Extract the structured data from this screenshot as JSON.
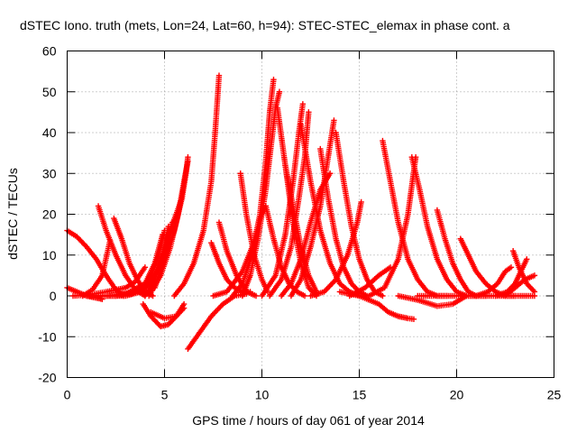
{
  "chart_data": {
    "type": "scatter",
    "title": "dSTEC Iono. truth (mets, Lon=24, Lat=60, h=94): STEC-STEC_elemax in phase cont. a",
    "xlabel": "GPS time / hours of day 061 of year 2014",
    "ylabel": "dSTEC  / TECUs",
    "xlim": [
      0,
      25
    ],
    "ylim": [
      -20,
      60
    ],
    "xticks": [
      0,
      5,
      10,
      15,
      20,
      25
    ],
    "yticks": [
      -20,
      -10,
      0,
      10,
      20,
      30,
      40,
      50,
      60
    ],
    "grid": true,
    "marker": "plus",
    "marker_color": "#ff0000",
    "series": [
      {
        "x": [
          0.0,
          0.5,
          1.0,
          1.5,
          2.0,
          2.5,
          2.9
        ],
        "y": [
          16,
          14.5,
          12,
          9,
          5,
          1.5,
          0
        ]
      },
      {
        "x": [
          0.0,
          0.5,
          1.0,
          1.5,
          1.8
        ],
        "y": [
          2,
          1,
          0,
          -0.5,
          -0.8
        ]
      },
      {
        "x": [
          0.8,
          1.3,
          1.8,
          2.2
        ],
        "y": [
          0,
          1.5,
          5,
          13.5
        ]
      },
      {
        "x": [
          1.6,
          2.0,
          2.5,
          3.0,
          3.5,
          4.0
        ],
        "y": [
          22,
          16,
          10,
          5,
          1.5,
          0
        ]
      },
      {
        "x": [
          2.4,
          2.8,
          3.2,
          3.6,
          4.0,
          4.4
        ],
        "y": [
          19,
          14,
          8,
          4,
          1,
          0
        ]
      },
      {
        "x": [
          0.3,
          1.0,
          2.0,
          3.0,
          3.5,
          4.0
        ],
        "y": [
          0,
          0.2,
          1,
          2,
          3.5,
          7
        ]
      },
      {
        "x": [
          1.0,
          2.0,
          3.0,
          4.0,
          4.5,
          4.9
        ],
        "y": [
          0,
          0,
          0.5,
          3,
          8,
          15
        ]
      },
      {
        "x": [
          1.5,
          2.5,
          3.5,
          4.2,
          4.7,
          5.0
        ],
        "y": [
          0,
          0,
          1,
          4,
          10,
          16
        ]
      },
      {
        "x": [
          2.0,
          3.0,
          3.8,
          4.4,
          4.9,
          5.2
        ],
        "y": [
          0,
          0,
          1,
          4,
          10,
          17
        ]
      },
      {
        "x": [
          2.5,
          3.3,
          4.0,
          4.6,
          5.1,
          5.4
        ],
        "y": [
          0,
          0.5,
          2,
          6,
          11,
          18
        ]
      },
      {
        "x": [
          4.0,
          4.4,
          4.8,
          5.2,
          5.6,
          5.9
        ],
        "y": [
          0,
          3,
          8,
          15,
          20,
          24
        ]
      },
      {
        "x": [
          4.2,
          4.8,
          5.3,
          5.7,
          6.0,
          6.2
        ],
        "y": [
          0,
          5,
          12,
          20,
          28,
          33
        ]
      },
      {
        "x": [
          4.5,
          5.0,
          5.5,
          5.9,
          6.1,
          6.2
        ],
        "y": [
          2,
          9,
          16,
          24,
          30,
          34
        ]
      },
      {
        "x": [
          3.9,
          4.3,
          4.8,
          5.2,
          5.6,
          6.0
        ],
        "y": [
          -2,
          -5,
          -7.5,
          -7,
          -5,
          -2
        ]
      },
      {
        "x": [
          4.3,
          5.0,
          5.6,
          6.0
        ],
        "y": [
          -4,
          -5.5,
          -5,
          -3
        ]
      },
      {
        "x": [
          5.5,
          6.0,
          6.5,
          7.0,
          7.4,
          7.6,
          7.8
        ],
        "y": [
          0,
          3,
          8,
          16,
          28,
          40,
          54
        ]
      },
      {
        "x": [
          6.2,
          6.8,
          7.4,
          8.0,
          8.6,
          9.2
        ],
        "y": [
          -13,
          -9,
          -5,
          -2,
          0,
          0.5
        ]
      },
      {
        "x": [
          7.4,
          7.8,
          8.2,
          8.6,
          9.0,
          9.4
        ],
        "y": [
          13,
          8,
          4,
          2,
          1,
          1
        ]
      },
      {
        "x": [
          7.8,
          8.2,
          8.7,
          9.2,
          9.7
        ],
        "y": [
          18,
          11,
          5,
          1,
          0
        ]
      },
      {
        "x": [
          8.9,
          9.2,
          9.6,
          10.0,
          10.3
        ],
        "y": [
          30,
          20,
          10,
          4,
          1
        ]
      },
      {
        "x": [
          7.5,
          8.2,
          9.0,
          9.5,
          9.9,
          10.2
        ],
        "y": [
          0,
          1,
          6,
          12,
          19,
          22
        ]
      },
      {
        "x": [
          8.5,
          9.0,
          9.5,
          9.9,
          10.2,
          10.4,
          10.6
        ],
        "y": [
          0,
          3,
          10,
          20,
          33,
          45,
          53
        ]
      },
      {
        "x": [
          9.0,
          9.4,
          9.8,
          10.2,
          10.5,
          10.7,
          10.9
        ],
        "y": [
          0,
          5,
          14,
          26,
          38,
          46,
          50
        ]
      },
      {
        "x": [
          10.2,
          10.6,
          11.0,
          11.4,
          11.8,
          12.2
        ],
        "y": [
          22,
          14,
          7,
          3,
          1,
          0
        ]
      },
      {
        "x": [
          10.8,
          11.2,
          11.6,
          12.0,
          12.4,
          12.8
        ],
        "y": [
          46,
          32,
          18,
          8,
          2,
          0
        ]
      },
      {
        "x": [
          11.2,
          11.6,
          12.0,
          12.4,
          12.8
        ],
        "y": [
          32,
          22,
          12,
          5,
          1
        ]
      },
      {
        "x": [
          10.0,
          10.7,
          11.2,
          11.6,
          11.9,
          12.1
        ],
        "y": [
          0,
          5,
          15,
          28,
          40,
          47
        ]
      },
      {
        "x": [
          10.4,
          11.0,
          11.5,
          11.9,
          12.2,
          12.4
        ],
        "y": [
          0,
          4,
          12,
          24,
          34,
          45
        ]
      },
      {
        "x": [
          11.0,
          11.5,
          12.0,
          12.5,
          13.0,
          13.5
        ],
        "y": [
          0,
          3,
          9,
          18,
          26,
          30
        ]
      },
      {
        "x": [
          11.5,
          12.0,
          12.5,
          13.0,
          13.4,
          13.7
        ],
        "y": [
          0,
          4,
          12,
          22,
          34,
          43
        ]
      },
      {
        "x": [
          12.0,
          12.5,
          13.0,
          13.5,
          14.0,
          14.5,
          15.0
        ],
        "y": [
          42,
          28,
          16,
          8,
          3,
          1,
          0
        ]
      },
      {
        "x": [
          13.0,
          13.4,
          13.8,
          14.2,
          14.6,
          15.0,
          15.4
        ],
        "y": [
          36,
          24,
          14,
          7,
          3,
          1,
          0
        ]
      },
      {
        "x": [
          13.8,
          14.2,
          14.6,
          15.0,
          15.4,
          15.8,
          16.2
        ],
        "y": [
          40,
          28,
          17,
          9,
          4,
          1,
          0
        ]
      },
      {
        "x": [
          12.5,
          13.2,
          13.8,
          14.4,
          14.9,
          15.1
        ],
        "y": [
          0,
          1,
          4,
          10,
          18,
          23
        ]
      },
      {
        "x": [
          14.0,
          15.0,
          16.0,
          16.5,
          17.0,
          17.5,
          17.8
        ],
        "y": [
          1,
          0,
          -2,
          -4,
          -5,
          -5.5,
          -5.7
        ]
      },
      {
        "x": [
          14.5,
          15.3,
          16.0,
          16.6
        ],
        "y": [
          0,
          2,
          5,
          7
        ]
      },
      {
        "x": [
          16.2,
          16.6,
          17.0,
          17.5,
          18.0,
          18.5,
          19.0,
          19.5
        ],
        "y": [
          38,
          28,
          18,
          9,
          4,
          1,
          0,
          0
        ]
      },
      {
        "x": [
          17.7,
          18.1,
          18.5,
          19.0,
          19.5,
          20.0,
          20.5
        ],
        "y": [
          34,
          26,
          17,
          9,
          4,
          1,
          0
        ]
      },
      {
        "x": [
          15.5,
          16.3,
          17.0,
          17.5,
          17.9
        ],
        "y": [
          0,
          2,
          9,
          20,
          34
        ]
      },
      {
        "x": [
          17.0,
          18.0,
          19.0,
          19.8,
          20.5,
          21.5
        ],
        "y": [
          0,
          -1,
          -2.5,
          -2,
          0,
          0
        ]
      },
      {
        "x": [
          19.0,
          19.4,
          19.8,
          20.2,
          20.6,
          21.0
        ],
        "y": [
          21,
          14,
          8,
          4,
          1,
          0
        ]
      },
      {
        "x": [
          20.2,
          20.6,
          21.0,
          21.5,
          22.0,
          22.5,
          23.0
        ],
        "y": [
          14,
          10,
          6,
          3,
          1,
          0,
          0
        ]
      },
      {
        "x": [
          22.9,
          23.2,
          23.6,
          24.0
        ],
        "y": [
          11,
          7,
          3,
          1
        ]
      },
      {
        "x": [
          21.0,
          21.6,
          22.1,
          22.5,
          22.8
        ],
        "y": [
          0,
          1,
          3,
          6,
          7
        ]
      },
      {
        "x": [
          22.0,
          22.6,
          23.0,
          23.4,
          23.6
        ],
        "y": [
          0,
          1,
          3,
          7,
          9
        ]
      },
      {
        "x": [
          22.5,
          23.0,
          23.5,
          24.0
        ],
        "y": [
          0,
          2,
          4,
          5
        ]
      },
      {
        "x": [
          18.0,
          19.0,
          20.0,
          21.0,
          22.0,
          23.0,
          24.0
        ],
        "y": [
          0,
          0,
          0,
          0,
          0,
          0,
          0
        ]
      }
    ]
  }
}
